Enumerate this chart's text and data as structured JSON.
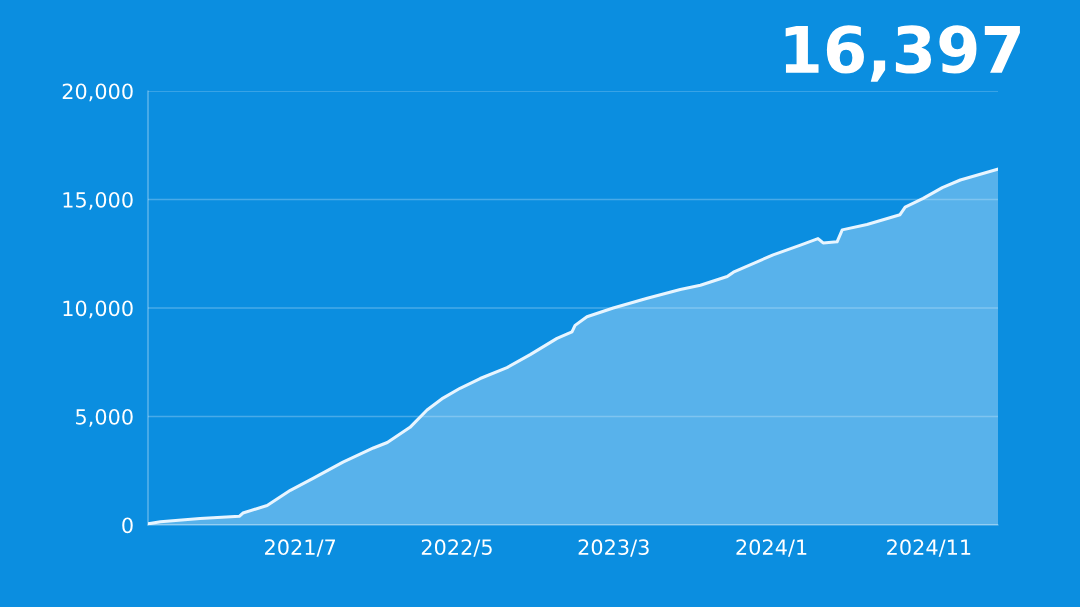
{
  "chart_data": {
    "type": "area",
    "title": "16,397",
    "x": [
      "2020-09-09",
      "2020-10-03",
      "2020-12-19",
      "2021-03-05",
      "2021-03-12",
      "2021-04-28",
      "2021-06-12",
      "2021-07-26",
      "2021-09-22",
      "2021-11-20",
      "2021-12-17",
      "2022-01-30",
      "2022-03-04",
      "2022-04-04",
      "2022-05-07",
      "2022-06-15",
      "2022-08-06",
      "2022-09-20",
      "2022-11-11",
      "2022-12-10",
      "2022-12-16",
      "2023-01-08",
      "2023-02-28",
      "2023-05-05",
      "2023-07-08",
      "2023-08-16",
      "2023-10-07",
      "2023-10-19",
      "2024-01-04",
      "2024-02-26",
      "2024-03-31",
      "2024-04-10",
      "2024-05-07",
      "2024-05-17",
      "2024-07-04",
      "2024-09-06",
      "2024-09-16",
      "2024-10-21",
      "2024-11-27",
      "2025-01-01",
      "2025-03-15"
    ],
    "series": [
      {
        "color": "#e8f5ff",
        "values": [
          50,
          150,
          300,
          400,
          550,
          900,
          1600,
          2150,
          2900,
          3550,
          3800,
          4500,
          5300,
          5850,
          6300,
          6750,
          7250,
          7850,
          8600,
          8900,
          9200,
          9600,
          10000,
          10450,
          10850,
          11050,
          11450,
          11650,
          12450,
          12900,
          13200,
          13000,
          13050,
          13600,
          13850,
          14300,
          14650,
          15050,
          15550,
          15900,
          16397
        ]
      }
    ],
    "xlim": [
      "2020-09-09",
      "2025-03-15"
    ],
    "xticks": [
      {
        "value": "2021-07",
        "label": "2021/7"
      },
      {
        "value": "2022-05",
        "label": "2022/5"
      },
      {
        "value": "2023-03",
        "label": "2023/3"
      },
      {
        "value": "2024-01",
        "label": "2024/1"
      },
      {
        "value": "2024-11",
        "label": "2024/11"
      }
    ],
    "ylim": [
      0,
      20000
    ],
    "yticks": [
      {
        "value": 0,
        "label": "0"
      },
      {
        "value": 5000,
        "label": "5,000"
      },
      {
        "value": 10000,
        "label": "10,000"
      },
      {
        "value": 15000,
        "label": "15,000"
      },
      {
        "value": 20000,
        "label": "20,000"
      }
    ],
    "grid": "y"
  }
}
